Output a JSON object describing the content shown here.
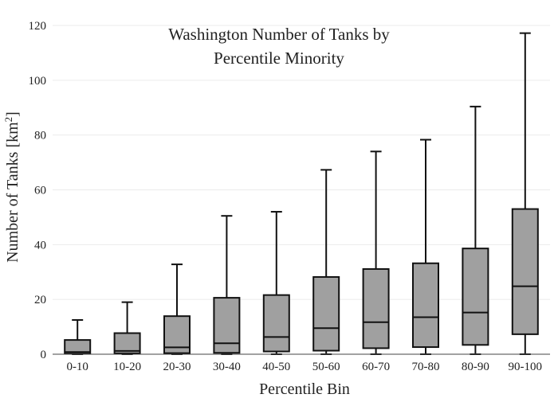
{
  "chart_data": {
    "type": "box",
    "title_lines": [
      "Washington Number of Tanks by",
      "Percentile Minority"
    ],
    "xlabel": "Percentile Bin",
    "ylabel_main": "Number of Tanks  [km",
    "ylabel_sup": "2",
    "ylabel_end": "]",
    "ylim": [
      0,
      120
    ],
    "yticks": [
      0,
      20,
      40,
      60,
      80,
      100,
      120
    ],
    "grid": true,
    "box_color": "#a0a0a0",
    "line_color": "#111111",
    "categories": [
      "0-10",
      "10-20",
      "20-30",
      "30-40",
      "40-50",
      "50-60",
      "60-70",
      "70-80",
      "80-90",
      "90-100"
    ],
    "boxes": [
      {
        "min": 0,
        "q1": 0.2,
        "median": 0.8,
        "q3": 5.2,
        "max": 12.5
      },
      {
        "min": 0,
        "q1": 0.3,
        "median": 1.2,
        "q3": 7.7,
        "max": 19
      },
      {
        "min": 0,
        "q1": 0.4,
        "median": 2.5,
        "q3": 13.9,
        "max": 32.8
      },
      {
        "min": 0,
        "q1": 0.5,
        "median": 4,
        "q3": 20.6,
        "max": 50.5
      },
      {
        "min": 0,
        "q1": 1,
        "median": 6.3,
        "q3": 21.6,
        "max": 52
      },
      {
        "min": 0,
        "q1": 1.3,
        "median": 9.5,
        "q3": 28.2,
        "max": 67.3
      },
      {
        "min": 0,
        "q1": 2.2,
        "median": 11.7,
        "q3": 31.1,
        "max": 74
      },
      {
        "min": 0,
        "q1": 2.6,
        "median": 13.5,
        "q3": 33.2,
        "max": 78.3
      },
      {
        "min": 0,
        "q1": 3.4,
        "median": 15.2,
        "q3": 38.6,
        "max": 90.4
      },
      {
        "min": 0,
        "q1": 7.3,
        "median": 24.8,
        "q3": 53,
        "max": 117.2
      }
    ]
  }
}
